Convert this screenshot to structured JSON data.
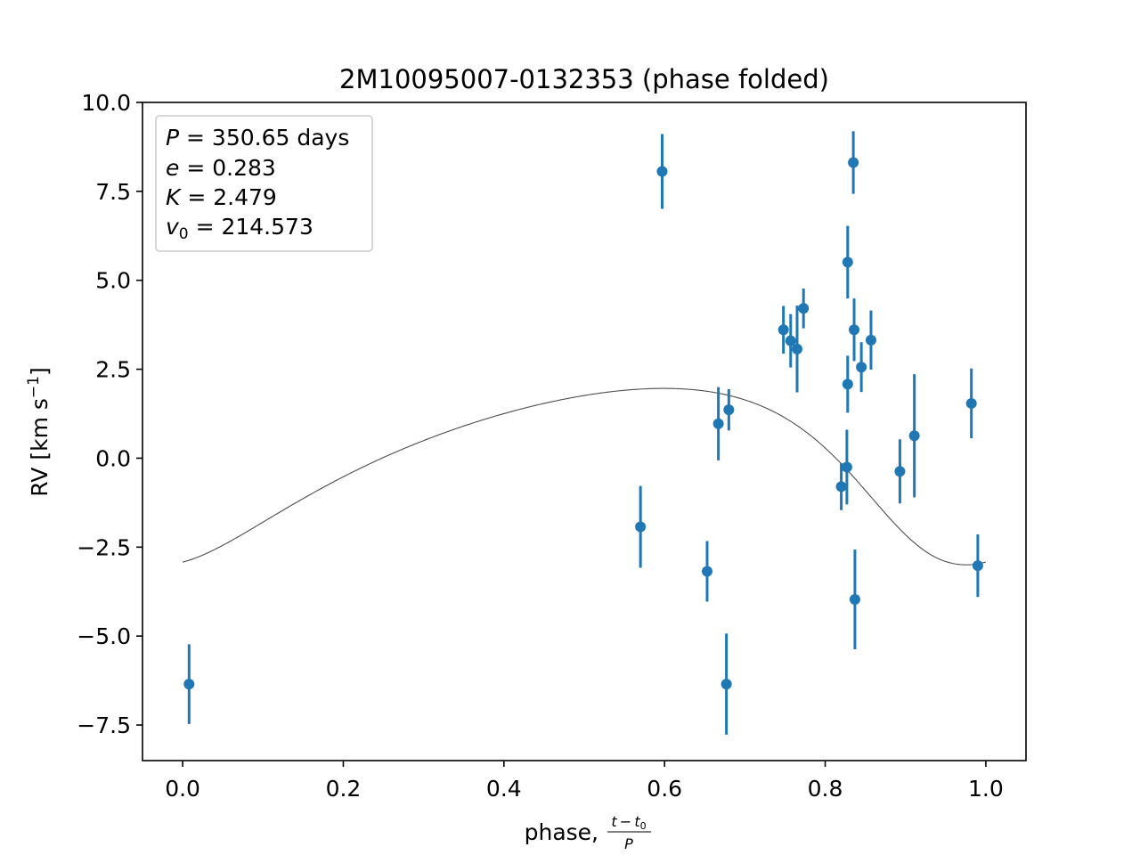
{
  "chart_data": {
    "type": "scatter",
    "title": "2M10095007-0132353 (phase folded)",
    "xlabel_text": "phase,",
    "xlabel_frac_num": "t − t",
    "xlabel_frac_num_sub": "0",
    "xlabel_frac_den": "P",
    "ylabel_text": "RV [km s",
    "ylabel_sup": "−1",
    "ylabel_close": "]",
    "xlim": [
      -0.05,
      1.05
    ],
    "ylim": [
      -8.5,
      10.0
    ],
    "xticks": [
      0.0,
      0.2,
      0.4,
      0.6,
      0.8,
      1.0
    ],
    "xtick_labels": [
      "0.0",
      "0.2",
      "0.4",
      "0.6",
      "0.8",
      "1.0"
    ],
    "yticks": [
      -7.5,
      -5.0,
      -2.5,
      0.0,
      2.5,
      5.0,
      7.5,
      10.0
    ],
    "ytick_labels": [
      "−7.5",
      "−5.0",
      "−2.5",
      "0.0",
      "2.5",
      "5.0",
      "7.5",
      "10.0"
    ],
    "legend": {
      "placement": "top-left",
      "lines": [
        {
          "var": "P",
          "sub": "",
          "value": "350.65 days"
        },
        {
          "var": "e",
          "sub": "",
          "value": "0.283"
        },
        {
          "var": "K",
          "sub": "",
          "value": "2.479"
        },
        {
          "var": "v",
          "sub": "0",
          "value": "214.573"
        }
      ]
    },
    "points": [
      {
        "x": 0.008,
        "y": -6.35,
        "err": 1.12
      },
      {
        "x": 0.57,
        "y": -1.93,
        "err": 1.15
      },
      {
        "x": 0.597,
        "y": 8.06,
        "err": 1.05
      },
      {
        "x": 0.653,
        "y": -3.18,
        "err": 0.85
      },
      {
        "x": 0.667,
        "y": 0.97,
        "err": 1.03
      },
      {
        "x": 0.677,
        "y": -6.35,
        "err": 1.42
      },
      {
        "x": 0.68,
        "y": 1.36,
        "err": 0.58
      },
      {
        "x": 0.748,
        "y": 3.61,
        "err": 0.67
      },
      {
        "x": 0.757,
        "y": 3.3,
        "err": 0.75
      },
      {
        "x": 0.765,
        "y": 3.07,
        "err": 1.22
      },
      {
        "x": 0.773,
        "y": 4.21,
        "err": 0.56
      },
      {
        "x": 0.82,
        "y": -0.8,
        "err": 0.66
      },
      {
        "x": 0.827,
        "y": -0.25,
        "err": 1.05
      },
      {
        "x": 0.828,
        "y": 2.08,
        "err": 0.8
      },
      {
        "x": 0.828,
        "y": 5.51,
        "err": 1.02
      },
      {
        "x": 0.835,
        "y": 8.31,
        "err": 0.88
      },
      {
        "x": 0.836,
        "y": 3.61,
        "err": 0.88
      },
      {
        "x": 0.837,
        "y": -3.97,
        "err": 1.4
      },
      {
        "x": 0.845,
        "y": 2.56,
        "err": 0.7
      },
      {
        "x": 0.857,
        "y": 3.32,
        "err": 0.83
      },
      {
        "x": 0.893,
        "y": -0.37,
        "err": 0.9
      },
      {
        "x": 0.911,
        "y": 0.63,
        "err": 1.73
      },
      {
        "x": 0.982,
        "y": 1.54,
        "err": 0.98
      },
      {
        "x": 0.99,
        "y": -3.02,
        "err": 0.88
      }
    ],
    "model_curve": {
      "P": 350.65,
      "e": 0.283,
      "K": 2.479,
      "v0": 214.573,
      "x_range": [
        0.0,
        1.0
      ]
    },
    "colors": {
      "points": "#1f77b4",
      "curve": "#4d4d4d"
    },
    "grid": false
  }
}
